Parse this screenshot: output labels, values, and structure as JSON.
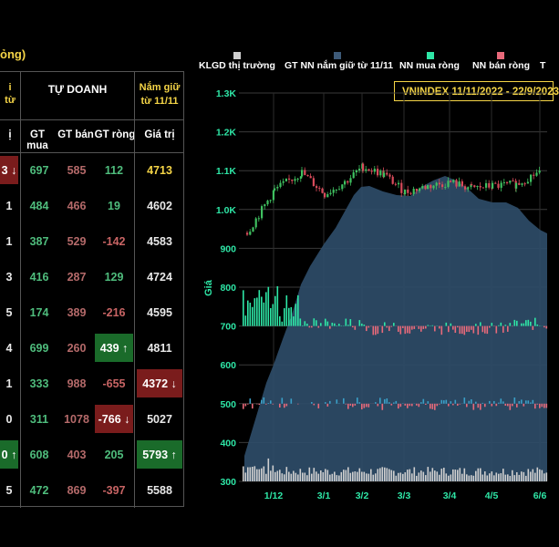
{
  "title_fragment": "ỏng)",
  "table": {
    "left_header_fragment": "i\ntừ",
    "group_header": "TỰ DOANH",
    "holding_header": "Nắm giữ\ntừ 11/11",
    "columns": [
      "GT mua",
      "GT bán",
      "GT ròng",
      "Giá trị"
    ],
    "left_col_header": "ị",
    "rows": [
      {
        "left": "3 ↓",
        "left_hl": "red",
        "buy": "697",
        "sell": "585",
        "net": "112",
        "net_hl": "",
        "value": "4713",
        "value_hl": "gold"
      },
      {
        "left": "1",
        "left_hl": "",
        "buy": "484",
        "sell": "466",
        "net": "19",
        "net_hl": "",
        "value": "4602",
        "value_hl": ""
      },
      {
        "left": "1",
        "left_hl": "",
        "buy": "387",
        "sell": "529",
        "net": "-142",
        "net_hl": "",
        "value": "4583",
        "value_hl": ""
      },
      {
        "left": "3",
        "left_hl": "",
        "buy": "416",
        "sell": "287",
        "net": "129",
        "net_hl": "",
        "value": "4724",
        "value_hl": ""
      },
      {
        "left": "5",
        "left_hl": "",
        "buy": "174",
        "sell": "389",
        "net": "-216",
        "net_hl": "",
        "value": "4595",
        "value_hl": ""
      },
      {
        "left": "4",
        "left_hl": "",
        "buy": "699",
        "sell": "260",
        "net": "439 ↑",
        "net_hl": "green",
        "value": "4811",
        "value_hl": ""
      },
      {
        "left": "1",
        "left_hl": "",
        "buy": "333",
        "sell": "988",
        "net": "-655",
        "net_hl": "",
        "value": "4372 ↓",
        "value_hl": "red"
      },
      {
        "left": "0",
        "left_hl": "",
        "buy": "311",
        "sell": "1078",
        "net": "-766 ↓",
        "net_hl": "red",
        "value": "5027",
        "value_hl": ""
      },
      {
        "left": "0 ↑",
        "left_hl": "green",
        "buy": "608",
        "sell": "403",
        "net": "205",
        "net_hl": "",
        "value": "5793 ↑",
        "value_hl": "green"
      },
      {
        "left": "5",
        "left_hl": "",
        "buy": "472",
        "sell": "869",
        "net": "-397",
        "net_hl": "",
        "value": "5588",
        "value_hl": ""
      }
    ]
  },
  "legend": [
    {
      "label": "KLGD thị trường",
      "color": "#cfcfcf"
    },
    {
      "label": "GT NN nắm giữ từ 11/11",
      "color": "#3d5a78"
    },
    {
      "label": "NN mua ròng",
      "color": "#2ee6a6"
    },
    {
      "label": "NN bán ròng",
      "color": "#e8697a"
    },
    {
      "label": "T",
      "color": ""
    }
  ],
  "banner": "VNINDEX 11/11/2022 - 22/9/2023",
  "chart_data": {
    "type": "line",
    "title": "VNINDEX 11/11/2022 - 22/9/2023",
    "ylabel": "Giá",
    "ylim": [
      300,
      1300
    ],
    "yticks": [
      "1.3K",
      "1.2K",
      "1.1K",
      "1.0K",
      "900",
      "800",
      "700",
      "600",
      "500",
      "400",
      "300"
    ],
    "xticks": [
      "1/12",
      "3/1",
      "3/2",
      "3/3",
      "3/4",
      "4/5",
      "6/6"
    ],
    "vnindex_approx": [
      {
        "x": "11/11",
        "y": 940
      },
      {
        "x": "1/12",
        "y": 1050
      },
      {
        "x": "15/12",
        "y": 1095
      },
      {
        "x": "3/1",
        "y": 1040
      },
      {
        "x": "15/1",
        "y": 1070
      },
      {
        "x": "3/2",
        "y": 1110
      },
      {
        "x": "15/2",
        "y": 1090
      },
      {
        "x": "3/3",
        "y": 1045
      },
      {
        "x": "15/3",
        "y": 1060
      },
      {
        "x": "3/4",
        "y": 1070
      },
      {
        "x": "15/4",
        "y": 1055
      },
      {
        "x": "4/5",
        "y": 1060
      },
      {
        "x": "20/5",
        "y": 1065
      },
      {
        "x": "6/6",
        "y": 1100
      }
    ],
    "series": [
      {
        "name": "KLGD thị trường"
      },
      {
        "name": "GT NN nắm giữ từ 11/11"
      },
      {
        "name": "NN mua ròng"
      },
      {
        "name": "NN bán ròng"
      }
    ],
    "grid": true
  }
}
